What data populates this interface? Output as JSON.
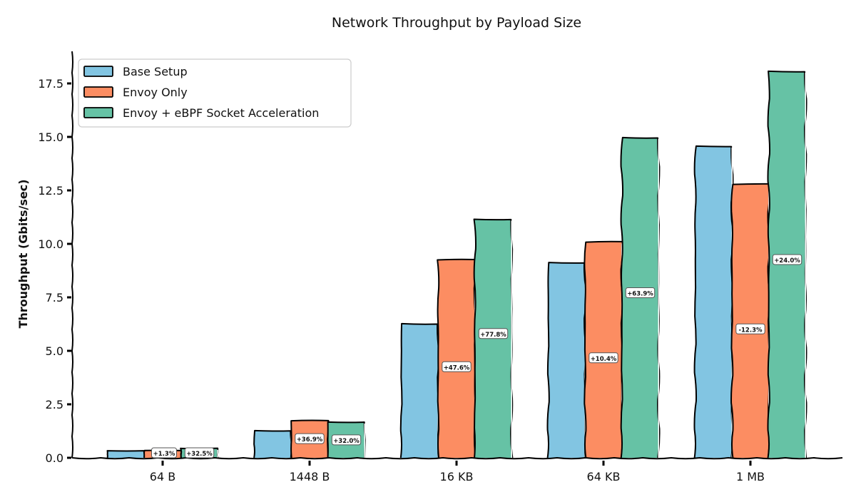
{
  "chart_data": {
    "type": "bar",
    "title": "Network Throughput by Payload Size",
    "xlabel": "",
    "ylabel": "Throughput (Gbits/sec)",
    "categories": [
      "64 B",
      "1448 B",
      "16 KB",
      "64 KB",
      "1 MB"
    ],
    "series": [
      {
        "name": "Base Setup",
        "color": "#82C5E2",
        "values": [
          0.33,
          1.27,
          6.27,
          9.13,
          14.57
        ],
        "labels": [
          "",
          "",
          "",
          "",
          ""
        ]
      },
      {
        "name": "Envoy Only",
        "color": "#FC8D62",
        "values": [
          0.34,
          1.73,
          9.25,
          10.08,
          12.78
        ],
        "labels": [
          "+1.3%",
          "+36.9%",
          "+47.6%",
          "+10.4%",
          "-12.3%"
        ]
      },
      {
        "name": "Envoy + eBPF Socket Acceleration",
        "color": "#66C2A5",
        "values": [
          0.44,
          1.67,
          11.15,
          14.97,
          18.07
        ],
        "labels": [
          "+32.5%",
          "+32.0%",
          "+77.8%",
          "+63.9%",
          "+24.0%"
        ]
      }
    ],
    "yticks": [
      "0.0",
      "2.5",
      "5.0",
      "7.5",
      "10.0",
      "12.5",
      "15.0",
      "17.5"
    ],
    "ylim": [
      0,
      19
    ],
    "grid": false,
    "legend_position": "upper left",
    "style": "xkcd hand-drawn"
  }
}
